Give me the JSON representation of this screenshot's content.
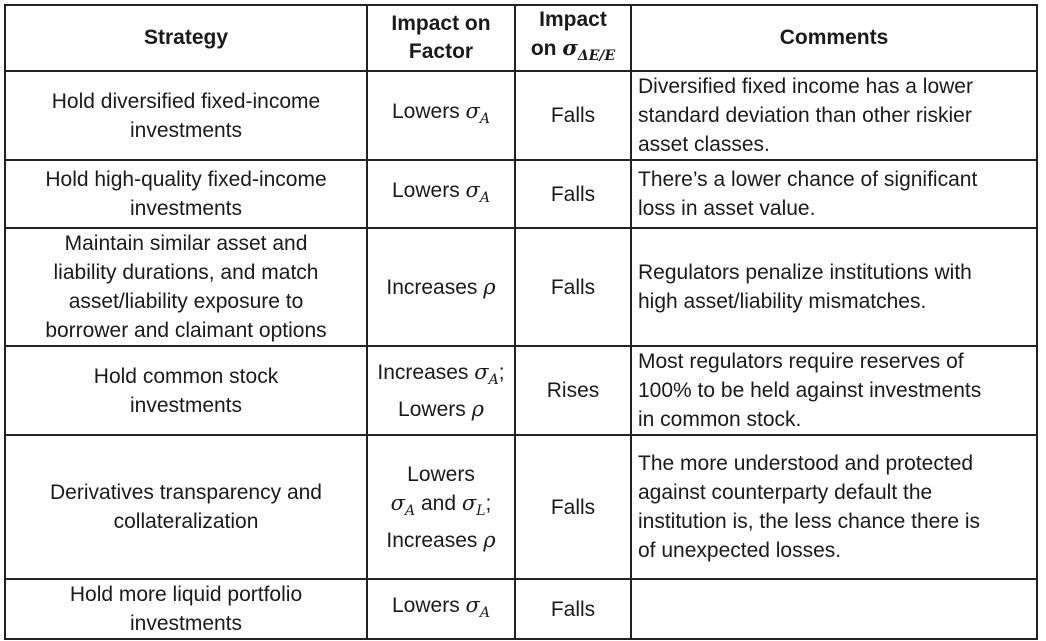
{
  "headers": {
    "strategy": "Strategy",
    "impact_factor_line1": "Impact on",
    "impact_factor_line2": "Factor",
    "impact_var_line1": "Impact",
    "impact_var_prefix": "on ",
    "impact_var_symbol": "σ",
    "impact_var_sub": "ΔE/E",
    "comments": "Comments"
  },
  "rows": [
    {
      "strategy": [
        "Hold diversified fixed-income",
        "investments"
      ],
      "factor": [
        {
          "pre": "Lowers ",
          "sym": "σ",
          "sub": "A",
          "post": ""
        }
      ],
      "impact": "Falls",
      "comments": [
        "Diversified fixed income has a lower",
        "standard deviation than other riskier",
        "asset classes."
      ]
    },
    {
      "strategy": [
        "Hold high-quality fixed-income",
        "investments"
      ],
      "factor": [
        {
          "pre": "Lowers ",
          "sym": "σ",
          "sub": "A",
          "post": ""
        }
      ],
      "impact": "Falls",
      "comments": [
        "There’s a lower chance of significant",
        "loss in asset value."
      ]
    },
    {
      "strategy": [
        "Maintain similar asset and",
        "liability durations, and match",
        "asset/liability exposure to",
        "borrower and claimant options"
      ],
      "factor": [
        {
          "pre": "Increases ",
          "sym": "ρ",
          "sub": "",
          "post": ""
        }
      ],
      "impact": "Falls",
      "comments": [
        "Regulators penalize institutions with",
        "high asset/liability mismatches."
      ]
    },
    {
      "strategy": [
        "Hold common stock",
        "investments"
      ],
      "factor": [
        {
          "pre": "Increases ",
          "sym": "σ",
          "sub": "A",
          "post": ";"
        },
        {
          "pre": "Lowers ",
          "sym": "ρ",
          "sub": "",
          "post": ""
        }
      ],
      "impact": "Rises",
      "comments": [
        "Most regulators require reserves of",
        "100% to be held against investments",
        "in common stock."
      ]
    },
    {
      "strategy": [
        "Derivatives transparency and",
        "collateralization"
      ],
      "factor": [
        {
          "pre": "Lowers",
          "sym": "",
          "sub": "",
          "post": ""
        },
        {
          "pre": "",
          "sym": "σ",
          "sub": "A",
          "post": " and ",
          "sym2": "σ",
          "sub2": "L",
          "post2": ";"
        },
        {
          "pre": "Increases ",
          "sym": "ρ",
          "sub": "",
          "post": ""
        }
      ],
      "impact": "Falls",
      "comments": [
        "The more understood and protected",
        "against counterparty default the",
        "institution is, the less chance there is",
        "of unexpected losses."
      ]
    },
    {
      "strategy": [
        "Hold more liquid portfolio",
        "investments"
      ],
      "factor": [
        {
          "pre": "Lowers ",
          "sym": "σ",
          "sub": "A",
          "post": ""
        }
      ],
      "impact": "Falls",
      "comments": []
    }
  ]
}
